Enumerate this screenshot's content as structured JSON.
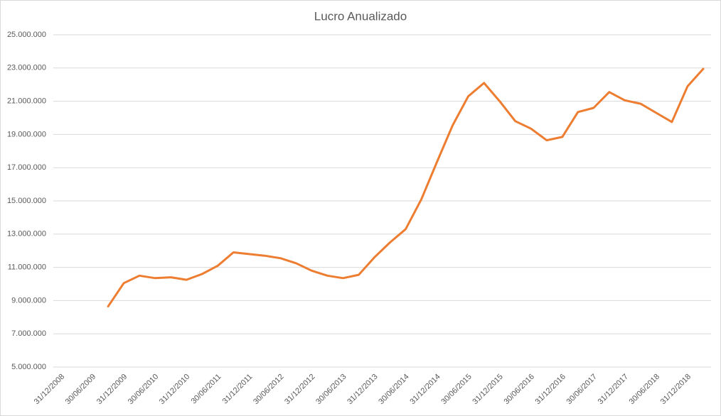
{
  "chart_data": {
    "type": "line",
    "title": "Lucro Anualizado",
    "categories": [
      "31/12/2008",
      null,
      "30/06/2009",
      null,
      "31/12/2009",
      null,
      "30/06/2010",
      null,
      "31/12/2010",
      null,
      "30/06/2011",
      null,
      "31/12/2011",
      null,
      "30/06/2012",
      null,
      "31/12/2012",
      null,
      "30/06/2013",
      null,
      "31/12/2013",
      null,
      "30/06/2014",
      null,
      "31/12/2014",
      null,
      "30/06/2015",
      null,
      "31/12/2015",
      null,
      "30/06/2016",
      null,
      "31/12/2016",
      null,
      "30/06/2017",
      null,
      "31/12/2017",
      null,
      "30/06/2018",
      null,
      "31/12/2018",
      null
    ],
    "series": [
      {
        "name": "Lucro Anualizado",
        "color": "#ed7d31",
        "values": [
          null,
          null,
          null,
          8650000,
          10050000,
          10500000,
          10350000,
          10400000,
          10250000,
          10600000,
          11100000,
          11900000,
          11800000,
          11700000,
          11550000,
          11250000,
          10800000,
          10500000,
          10350000,
          10550000,
          11600000,
          12500000,
          13300000,
          15100000,
          17350000,
          19550000,
          21300000,
          22100000,
          21000000,
          19800000,
          19350000,
          18650000,
          18850000,
          20350000,
          20600000,
          21550000,
          21050000,
          20850000,
          20300000,
          19750000,
          21900000,
          22950000
        ]
      }
    ],
    "ylim": [
      5000000,
      25000000
    ],
    "yticks": [
      {
        "value": 5000000,
        "label": "5.000.000"
      },
      {
        "value": 7000000,
        "label": "7.000.000"
      },
      {
        "value": 9000000,
        "label": "9.000.000"
      },
      {
        "value": 11000000,
        "label": "11.000.000"
      },
      {
        "value": 13000000,
        "label": "13.000.000"
      },
      {
        "value": 15000000,
        "label": "15.000.000"
      },
      {
        "value": 17000000,
        "label": "17.000.000"
      },
      {
        "value": 19000000,
        "label": "19.000.000"
      },
      {
        "value": 21000000,
        "label": "21.000.000"
      },
      {
        "value": 23000000,
        "label": "23.000.000"
      },
      {
        "value": 25000000,
        "label": "25.000.000"
      }
    ],
    "grid": true
  }
}
